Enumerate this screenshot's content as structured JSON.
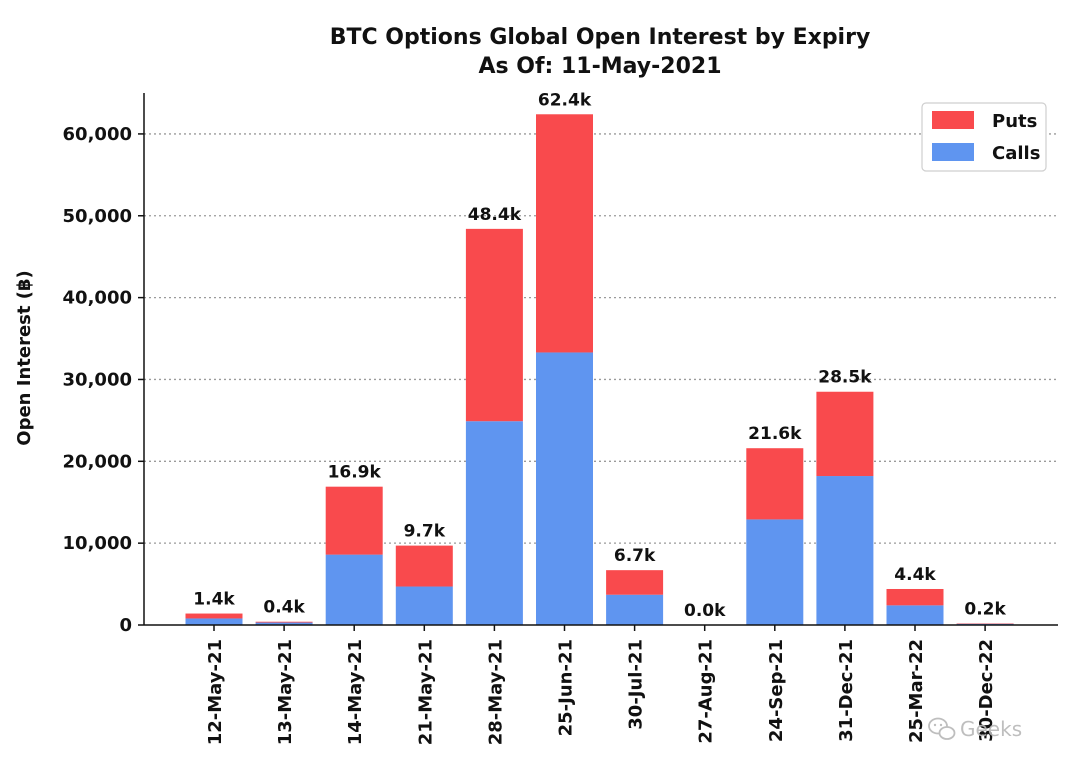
{
  "chart_data": {
    "type": "bar",
    "stacked": true,
    "title": "BTC Options Global Open Interest by Expiry",
    "subtitle": "As Of: 11-May-2021",
    "xlabel": "",
    "ylabel": "Open Interest (฿)",
    "ylim": [
      0,
      65000
    ],
    "yticks": [
      0,
      10000,
      20000,
      30000,
      40000,
      50000,
      60000
    ],
    "ytick_labels": [
      "0",
      "10,000",
      "20,000",
      "30,000",
      "40,000",
      "50,000",
      "60,000"
    ],
    "grid": "horizontal dotted",
    "legend_position": "top-right",
    "categories": [
      "12-May-21",
      "13-May-21",
      "14-May-21",
      "21-May-21",
      "28-May-21",
      "25-Jun-21",
      "30-Jul-21",
      "27-Aug-21",
      "24-Sep-21",
      "31-Dec-21",
      "25-Mar-22",
      "30-Dec-22"
    ],
    "series": [
      {
        "name": "Calls",
        "color": "#5f95f0",
        "values": [
          800,
          300,
          8600,
          4700,
          24900,
          33300,
          3700,
          0,
          12900,
          18200,
          2400,
          150
        ]
      },
      {
        "name": "Puts",
        "color": "#f94a4d",
        "values": [
          600,
          100,
          8300,
          5000,
          23500,
          29100,
          3000,
          0,
          8700,
          10300,
          2000,
          50
        ]
      }
    ],
    "totals_labels": [
      "1.4k",
      "0.4k",
      "16.9k",
      "9.7k",
      "48.4k",
      "62.4k",
      "6.7k",
      "0.0k",
      "21.6k",
      "28.5k",
      "4.4k",
      "0.2k"
    ],
    "legend": [
      {
        "name": "Puts",
        "color": "#f94a4d"
      },
      {
        "name": "Calls",
        "color": "#5f95f0"
      }
    ]
  },
  "watermark": {
    "text": "Geeks",
    "icon": "wechat-icon"
  }
}
